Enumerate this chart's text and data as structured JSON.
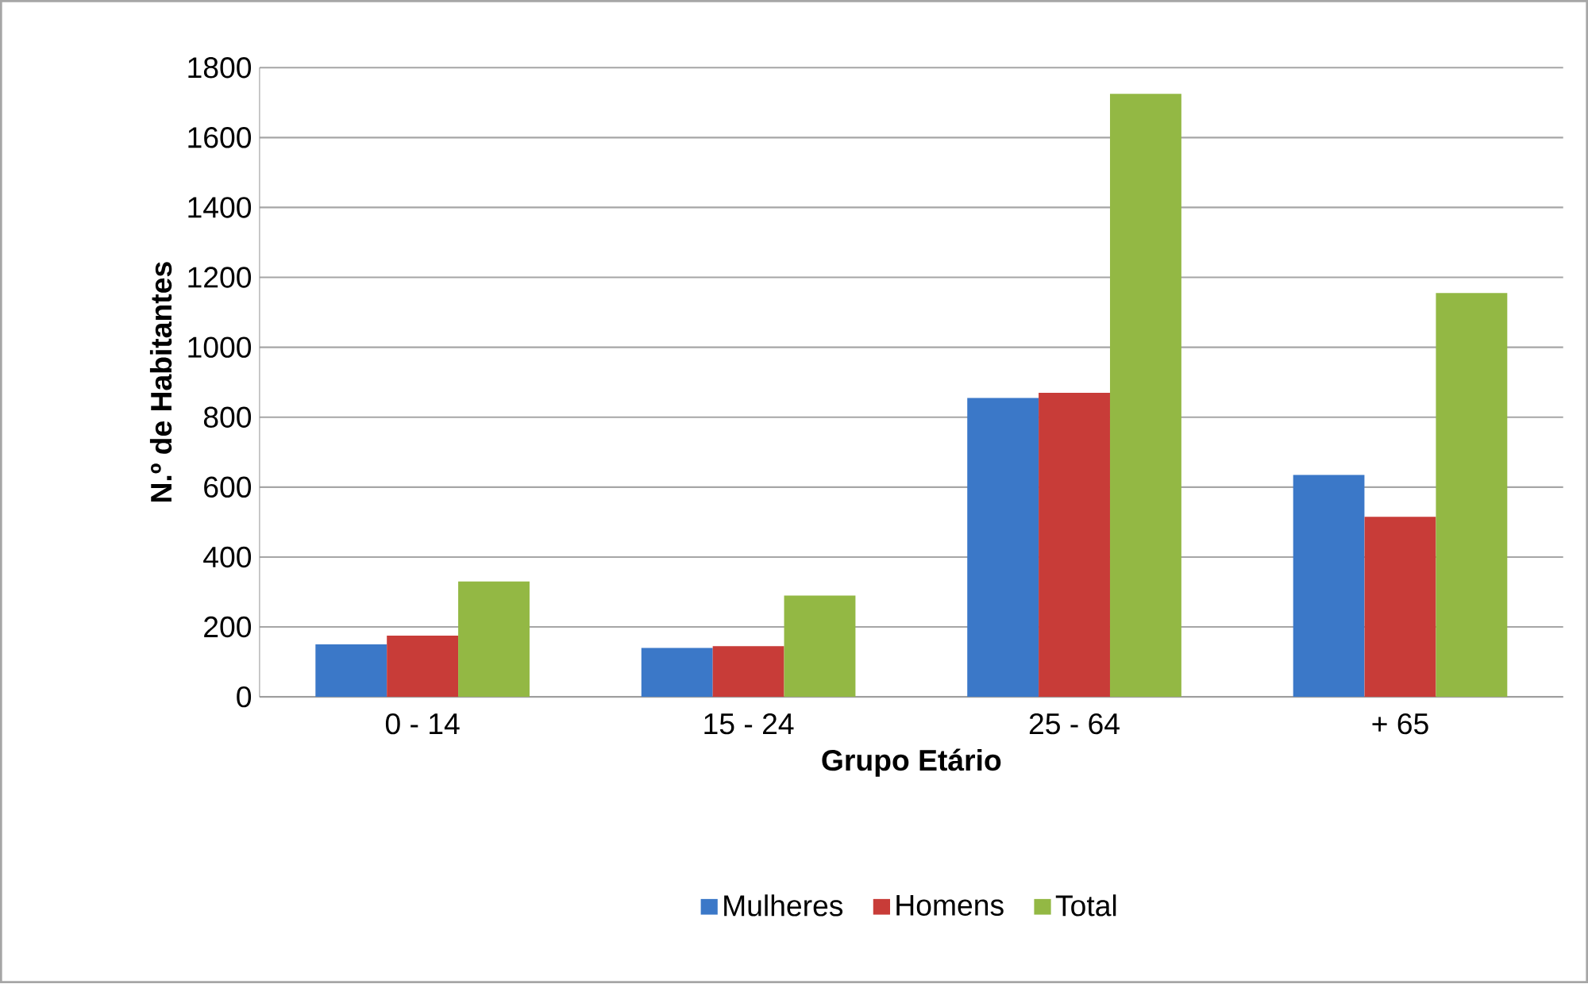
{
  "chart_data": {
    "type": "bar",
    "xlabel": "Grupo Etário",
    "ylabel": "N.º de Habitantes",
    "categories": [
      "0 - 14",
      "15 - 24",
      "25 - 64",
      "+ 65"
    ],
    "series": [
      {
        "name": "Mulheres",
        "color": "#3b78c8",
        "values": [
          150,
          140,
          855,
          635
        ]
      },
      {
        "name": "Homens",
        "color": "#c83c38",
        "values": [
          175,
          145,
          870,
          515
        ]
      },
      {
        "name": "Total",
        "color": "#93b844",
        "values": [
          330,
          290,
          1725,
          1155
        ]
      }
    ],
    "ylim": [
      0,
      1800
    ],
    "yticks": [
      0,
      200,
      400,
      600,
      800,
      1000,
      1200,
      1400,
      1600,
      1800
    ],
    "grid": "y",
    "legend": "bottom"
  }
}
